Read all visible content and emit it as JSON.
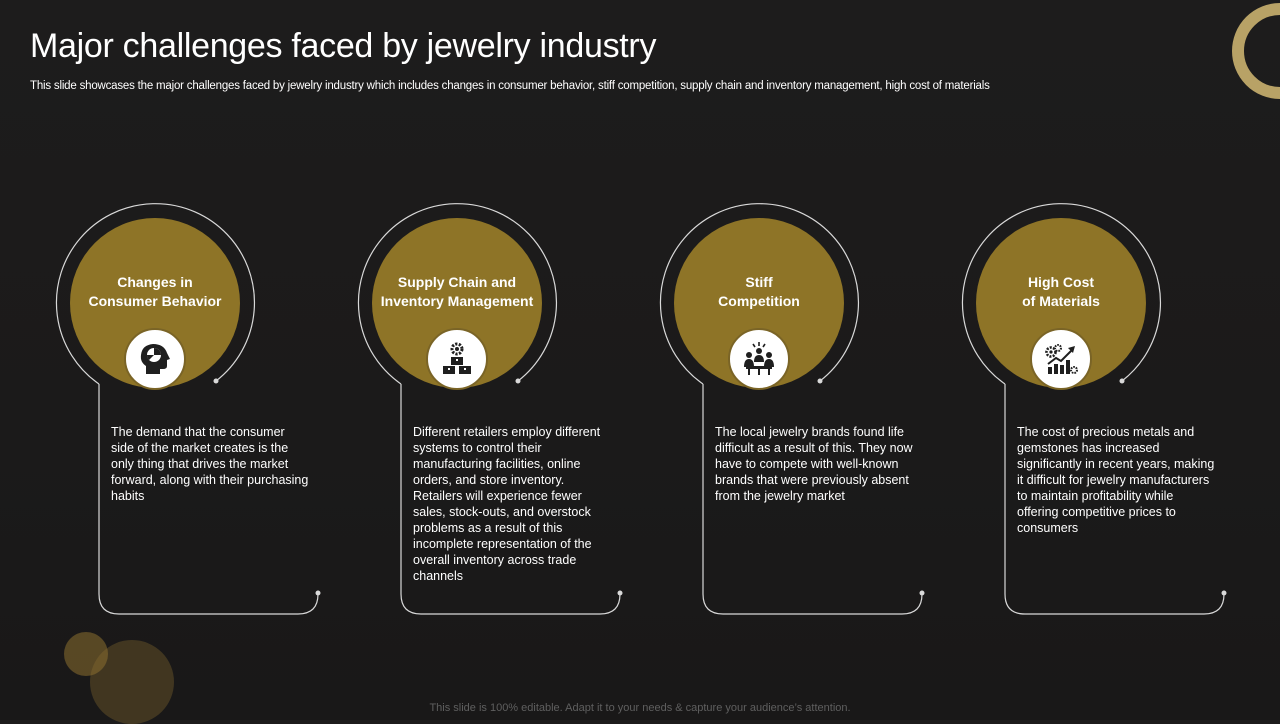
{
  "slide": {
    "title": "Major challenges faced by jewelry industry",
    "subtitle": "This slide showcases the major challenges faced by jewelry industry which includes changes in consumer behavior, stiff competition, supply chain and inventory management, high cost of materials",
    "footer": "This slide is 100% editable. Adapt it to your needs & capture your audience’s attention."
  },
  "colors": {
    "background": "#1c1b1b",
    "gold": "#8e7427",
    "accent_ring": "#b8a266",
    "outline": "#d9d9d9"
  },
  "cards": [
    {
      "heading": "Changes in\nConsumer Behavior",
      "icon": "head-pie-chart-icon",
      "body": "The demand that the consumer side of the market creates is the only thing that drives the market forward, along with their purchasing habits"
    },
    {
      "heading": "Supply Chain and\nInventory Management",
      "icon": "gear-boxes-icon",
      "body": "Different retailers employ different systems to control their manufacturing facilities, online orders, and store inventory. Retailers will experience fewer sales, stock-outs, and overstock problems as a result of this incomplete representation of the overall inventory across trade channels"
    },
    {
      "heading": "Stiff\nCompetition",
      "icon": "meeting-people-icon",
      "body": "The local jewelry brands found life difficult as a result of this. They now have to compete with well-known brands that were previously absent from the jewelry market"
    },
    {
      "heading": "High Cost\nof Materials",
      "icon": "rising-chart-gears-icon",
      "body": "The cost of precious metals and gemstones has increased significantly in recent years, making it difficult for jewelry manufacturers to maintain profitability while offering competitive prices to consumers"
    }
  ]
}
